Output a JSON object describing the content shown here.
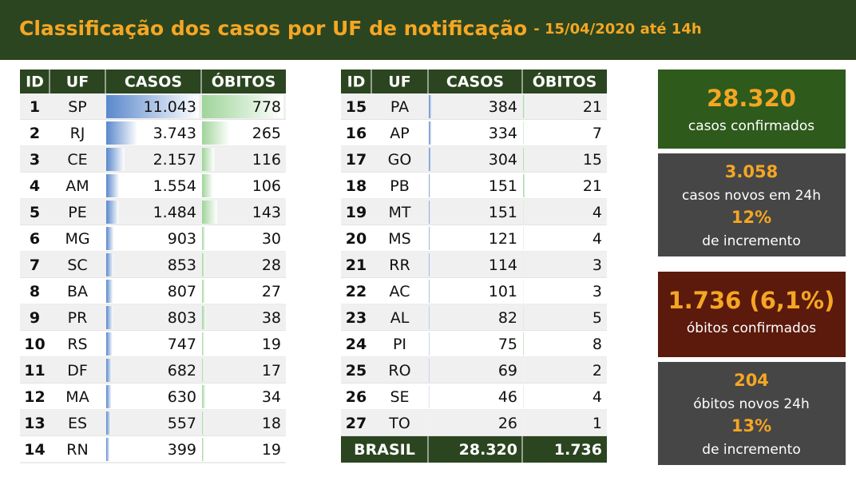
{
  "header": {
    "title": "Classificação dos casos por UF de notificação",
    "subtitle": "- 15/04/2020 até 14h"
  },
  "tables": [
    {
      "columns": [
        "ID",
        "UF",
        "CASOS",
        "ÓBITOS"
      ],
      "rows": [
        [
          "1",
          "SP",
          "11.043",
          "778"
        ],
        [
          "2",
          "RJ",
          "3.743",
          "265"
        ],
        [
          "3",
          "CE",
          "2.157",
          "116"
        ],
        [
          "4",
          "AM",
          "1.554",
          "106"
        ],
        [
          "5",
          "PE",
          "1.484",
          "143"
        ],
        [
          "6",
          "MG",
          "903",
          "30"
        ],
        [
          "7",
          "SC",
          "853",
          "28"
        ],
        [
          "8",
          "BA",
          "807",
          "27"
        ],
        [
          "9",
          "PR",
          "803",
          "38"
        ],
        [
          "10",
          "RS",
          "747",
          "19"
        ],
        [
          "11",
          "DF",
          "682",
          "17"
        ],
        [
          "12",
          "MA",
          "630",
          "34"
        ],
        [
          "13",
          "ES",
          "557",
          "18"
        ],
        [
          "14",
          "RN",
          "399",
          "19"
        ]
      ]
    },
    {
      "columns": [
        "ID",
        "UF",
        "CASOS",
        "ÓBITOS"
      ],
      "rows": [
        [
          "15",
          "PA",
          "384",
          "21"
        ],
        [
          "16",
          "AP",
          "334",
          "7"
        ],
        [
          "17",
          "GO",
          "304",
          "15"
        ],
        [
          "18",
          "PB",
          "151",
          "21"
        ],
        [
          "19",
          "MT",
          "151",
          "4"
        ],
        [
          "20",
          "MS",
          "121",
          "4"
        ],
        [
          "21",
          "RR",
          "114",
          "3"
        ],
        [
          "22",
          "AC",
          "101",
          "3"
        ],
        [
          "23",
          "AL",
          "82",
          "5"
        ],
        [
          "24",
          "PI",
          "75",
          "8"
        ],
        [
          "25",
          "RO",
          "69",
          "2"
        ],
        [
          "26",
          "SE",
          "46",
          "4"
        ],
        [
          "27",
          "TO",
          "26",
          "1"
        ]
      ],
      "total": [
        "BRASIL",
        "28.320",
        "1.736"
      ]
    }
  ],
  "cards": [
    {
      "value": "28.320",
      "label": "casos confirmados"
    },
    {
      "value": "3.058",
      "label": "casos novos em 24h",
      "increment": "12%",
      "increment_label": "de incremento"
    },
    {
      "value": "1.736 (6,1%)",
      "label": "óbitos confirmados"
    },
    {
      "value": "204",
      "label": "óbitos novos 24h",
      "increment": "13%",
      "increment_label": "de incremento"
    }
  ]
}
